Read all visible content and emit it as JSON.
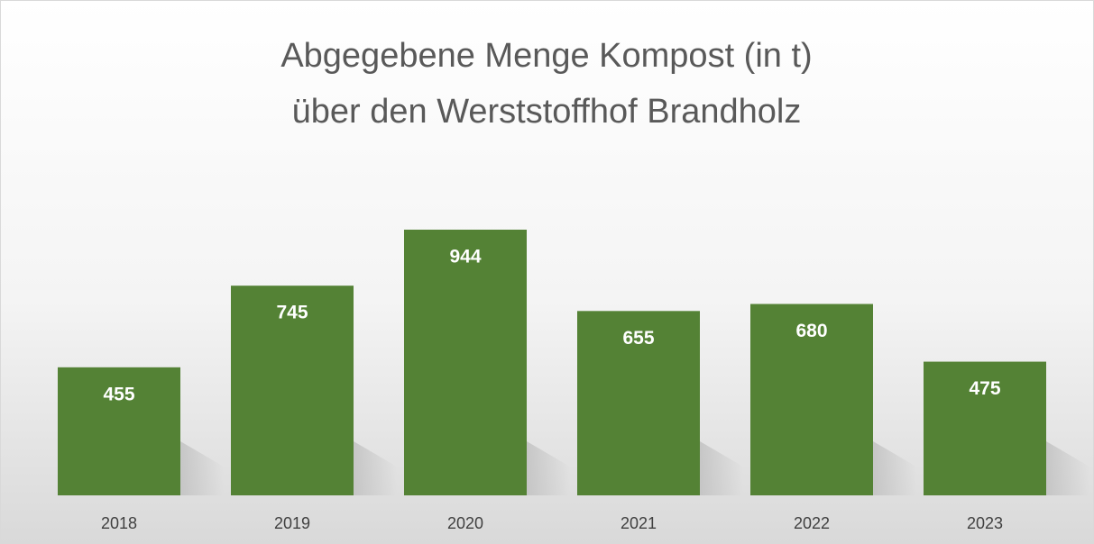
{
  "chart_data": {
    "type": "bar",
    "title": [
      "Abgegebene Menge Kompost (in t)",
      "über den Werststoffhof Brandholz"
    ],
    "categories": [
      "2018",
      "2019",
      "2020",
      "2021",
      "2022",
      "2023"
    ],
    "values": [
      455,
      745,
      944,
      655,
      680,
      475
    ],
    "color": "#548235",
    "ylim": [
      0,
      1000
    ]
  }
}
